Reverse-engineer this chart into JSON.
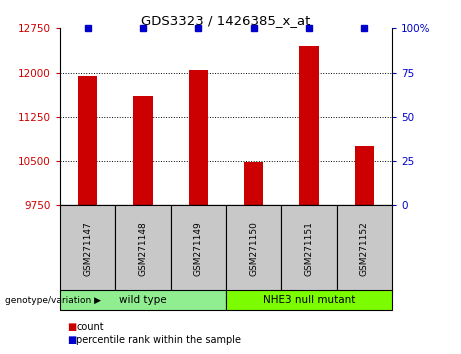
{
  "title": "GDS3323 / 1426385_x_at",
  "samples": [
    "GSM271147",
    "GSM271148",
    "GSM271149",
    "GSM271150",
    "GSM271151",
    "GSM271152"
  ],
  "counts": [
    11950,
    11600,
    12050,
    10480,
    12450,
    10750
  ],
  "ylim_left": [
    9750,
    12750
  ],
  "ylim_right": [
    0,
    100
  ],
  "yticks_left": [
    9750,
    10500,
    11250,
    12000,
    12750
  ],
  "yticks_right": [
    0,
    25,
    50,
    75,
    100
  ],
  "ytick_labels_right": [
    "0",
    "25",
    "50",
    "75",
    "100%"
  ],
  "grid_lines": [
    12000,
    11250,
    10500
  ],
  "bar_color": "#cc0000",
  "bar_width": 0.35,
  "percentile_color": "#0000cc",
  "groups": [
    {
      "label": "wild type",
      "indices": [
        0,
        1,
        2
      ],
      "color": "#90ee90"
    },
    {
      "label": "NHE3 null mutant",
      "indices": [
        3,
        4,
        5
      ],
      "color": "#7cfc00"
    }
  ],
  "group_label_text": "genotype/variation",
  "legend_count_label": "count",
  "legend_percentile_label": "percentile rank within the sample",
  "tick_color_left": "#cc0000",
  "tick_color_right": "#0000cc",
  "background_sample_box": "#c8c8c8",
  "sample_box_border": "#000000"
}
